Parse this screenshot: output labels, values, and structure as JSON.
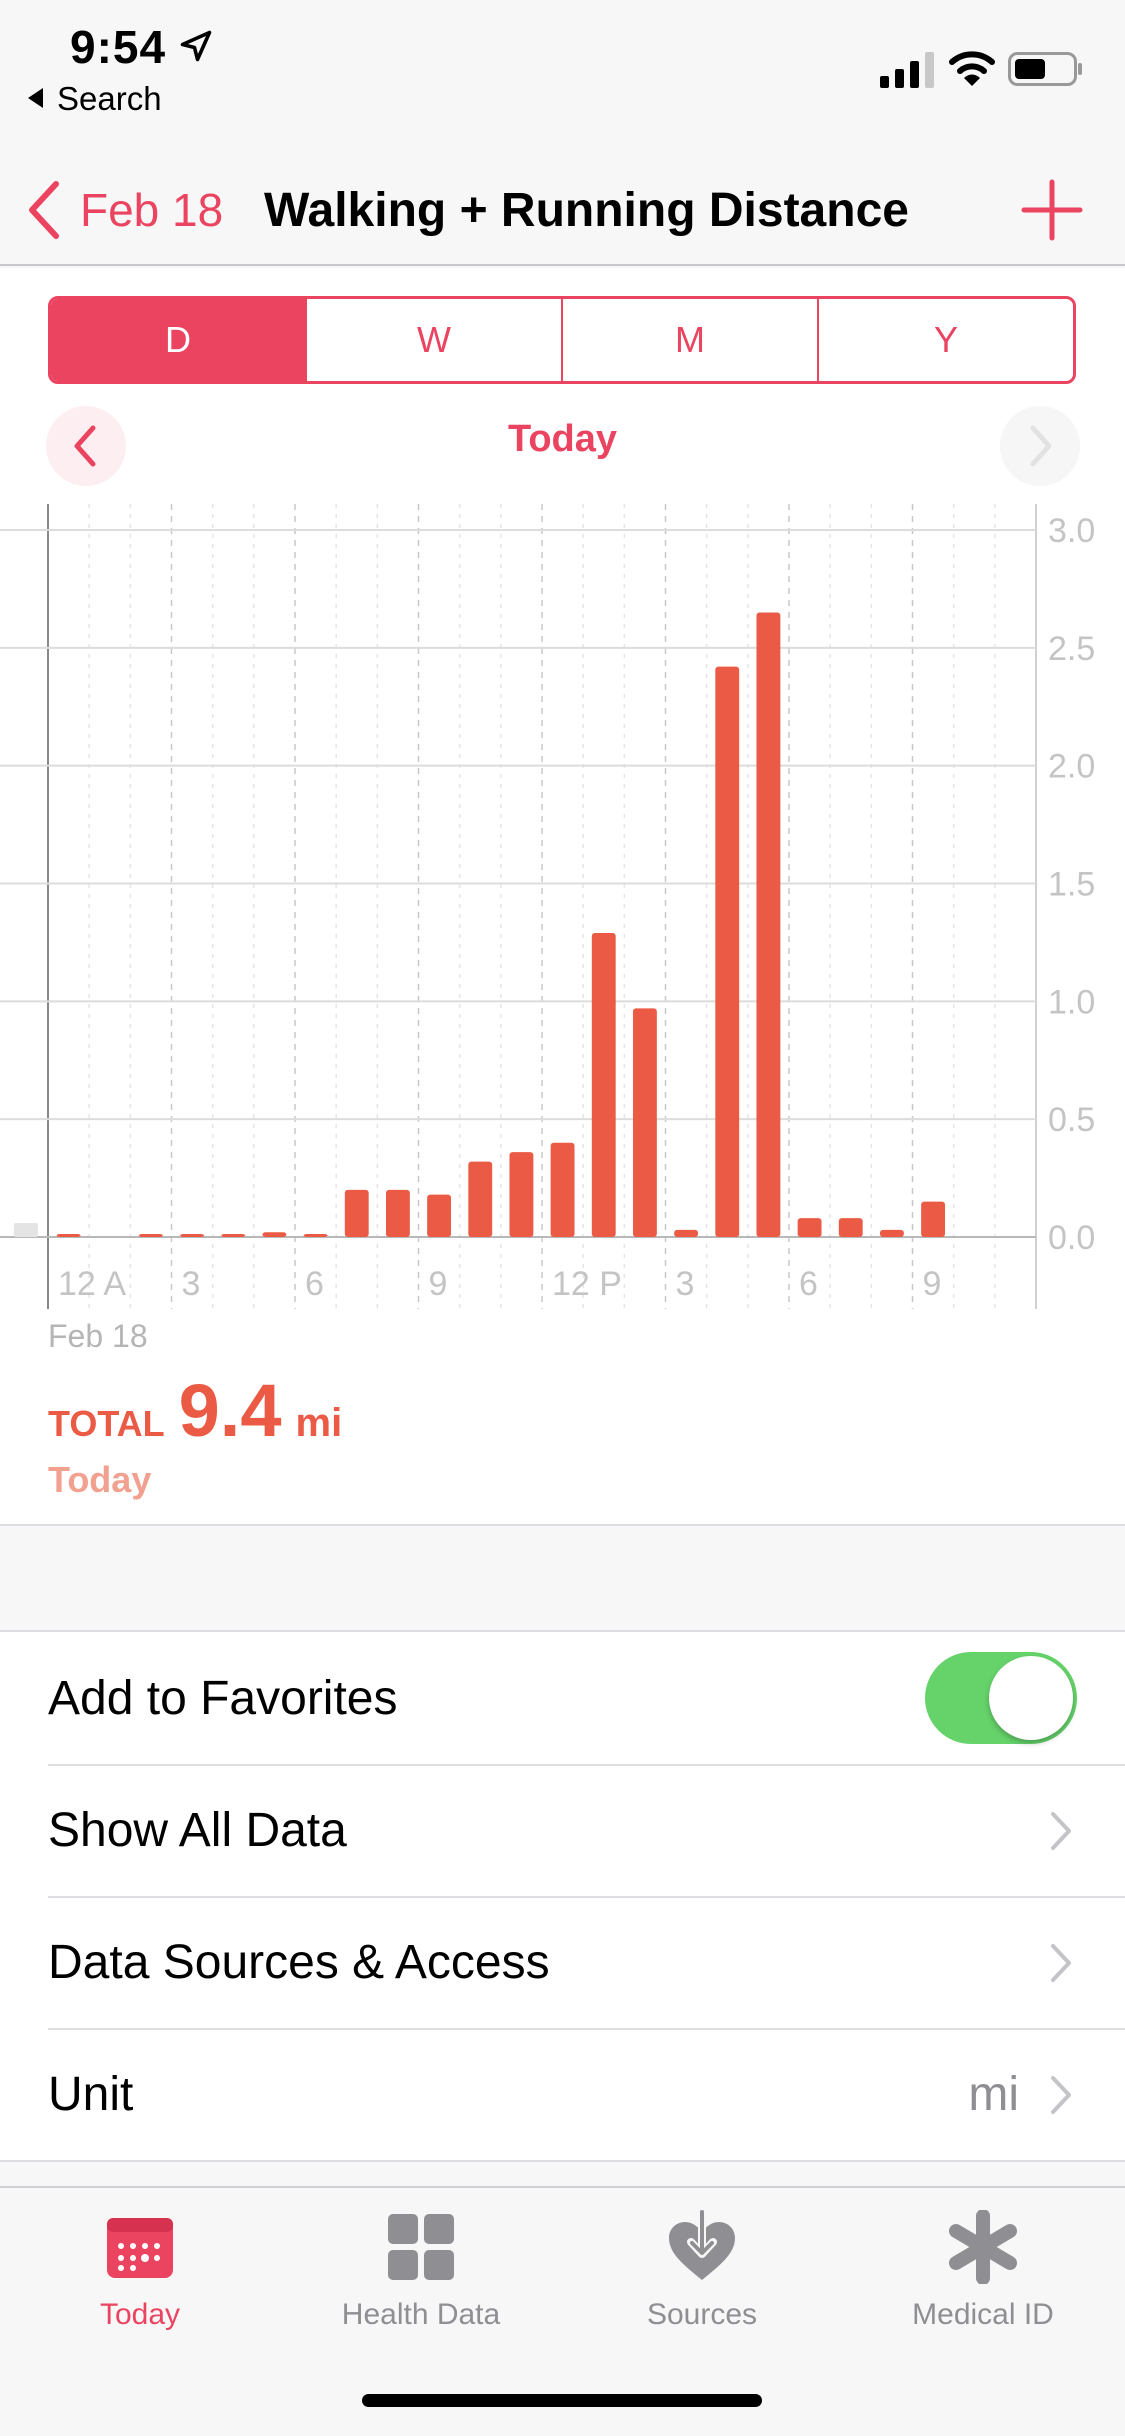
{
  "status_bar": {
    "time": "9:54",
    "back_app": "Search"
  },
  "nav": {
    "back_label": "Feb 18",
    "title": "Walking + Running Distance"
  },
  "segments": [
    {
      "label": "D",
      "active": true
    },
    {
      "label": "W",
      "active": false
    },
    {
      "label": "M",
      "active": false
    },
    {
      "label": "Y",
      "active": false
    }
  ],
  "period_label": "Today",
  "chart_data": {
    "type": "bar",
    "x": [
      "12 A",
      "1",
      "2",
      "3",
      "4",
      "5",
      "6",
      "7",
      "8",
      "9",
      "10",
      "11",
      "12 P",
      "1",
      "2",
      "3",
      "4",
      "5",
      "6",
      "7",
      "8",
      "9",
      "10",
      "11"
    ],
    "x_tick_labels": [
      "12 A",
      "3",
      "6",
      "9",
      "12 P",
      "3",
      "6",
      "9"
    ],
    "values": [
      0.01,
      0,
      0.01,
      0.005,
      0.01,
      0.02,
      0.01,
      0.2,
      0.2,
      0.18,
      0.32,
      0.36,
      0.4,
      1.29,
      0.97,
      0.03,
      2.42,
      2.65,
      0.08,
      0.08,
      0.03,
      0.15,
      0,
      0
    ],
    "y_ticks": [
      "0.0",
      "0.5",
      "1.0",
      "1.5",
      "2.0",
      "2.5",
      "3.0"
    ],
    "ylim": [
      0,
      3.0
    ],
    "date_label": "Feb 18",
    "bar_color": "#eb5a45",
    "grid": true
  },
  "totals": {
    "label": "TOTAL",
    "value": "9.4",
    "unit": "mi",
    "sub": "Today"
  },
  "list": {
    "favorites": "Add to Favorites",
    "favorites_on": true,
    "show_all": "Show All Data",
    "sources": "Data Sources & Access",
    "unit": "Unit",
    "unit_value": "mi"
  },
  "tabs": [
    {
      "label": "Today",
      "icon": "calendar-icon",
      "active": true
    },
    {
      "label": "Health Data",
      "icon": "grid-icon",
      "active": false
    },
    {
      "label": "Sources",
      "icon": "heart-download-icon",
      "active": false
    },
    {
      "label": "Medical ID",
      "icon": "asterisk-icon",
      "active": false
    }
  ],
  "colors": {
    "accent": "#eb4461",
    "bar": "#eb5a45",
    "toggle": "#65d36a"
  }
}
